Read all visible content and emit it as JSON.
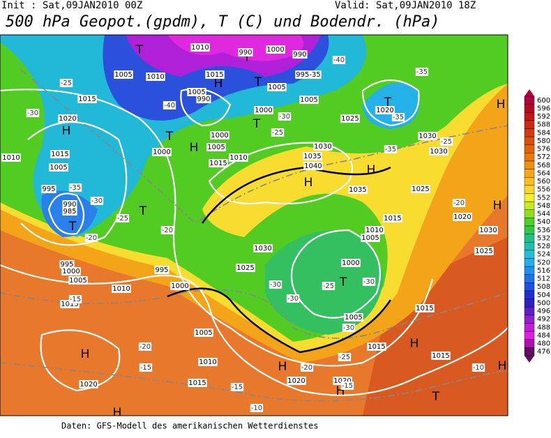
{
  "header": {
    "init": "Init : Sat,09JAN2010 00Z",
    "valid": "Valid: Sat,09JAN2010 18Z",
    "title": "500 hPa Geopot.(gpdm), T (C) und Bodendr. (hPa)"
  },
  "footer": {
    "source": "Daten: GFS-Modell des amerikanischen Wetterdienstes"
  },
  "colorbar": {
    "levels": [
      "600",
      "596",
      "592",
      "588",
      "584",
      "580",
      "576",
      "572",
      "568",
      "564",
      "560",
      "556",
      "552",
      "548",
      "544",
      "540",
      "536",
      "532",
      "528",
      "524",
      "520",
      "516",
      "512",
      "508",
      "504",
      "500",
      "496",
      "492",
      "488",
      "484",
      "480",
      "476"
    ],
    "colors": [
      "#b00040",
      "#b40a20",
      "#c01818",
      "#c82a14",
      "#d03c10",
      "#d8500c",
      "#e06408",
      "#e87a08",
      "#f09010",
      "#f4a818",
      "#f8c020",
      "#f8d830",
      "#f0f030",
      "#c8e828",
      "#90dc20",
      "#50d020",
      "#30c848",
      "#20c080",
      "#20c0b0",
      "#20c0d8",
      "#20b0f0",
      "#2090f0",
      "#2070e8",
      "#2050e0",
      "#2030d0",
      "#3020c0",
      "#6020c8",
      "#9020d0",
      "#c020d8",
      "#e020e0",
      "#b010b0",
      "#601060"
    ]
  },
  "map": {
    "labels": [
      "H",
      "T",
      "H",
      "T",
      "T",
      "H",
      "T",
      "H",
      "T",
      "T",
      "T",
      "H",
      "H",
      "T",
      "H",
      "H",
      "H",
      "T",
      "H",
      "H",
      "H",
      "T",
      "H",
      "1010",
      "990",
      "1000",
      "990",
      "995-35",
      "1010",
      "1015",
      "1005",
      "1005",
      "990",
      "1005",
      "1005",
      "1000",
      "1015",
      "1020",
      "1025",
      "1020",
      "1030",
      "1030",
      "1000",
      "1000",
      "1005",
      "1010",
      "1015",
      "1030",
      "1035",
      "1040",
      "1035",
      "1025",
      "1020",
      "1030",
      "1025",
      "1015",
      "1010",
      "1005",
      "1000",
      "1030",
      "1025",
      "1000",
      "995",
      "1010",
      "1000",
      "1005",
      "995",
      "1015",
      "1005",
      "1010",
      "1015",
      "1020",
      "1015",
      "1015",
      "1015",
      "1020",
      "1020",
      "1005",
      "1010",
      "1005",
      "1015",
      "995",
      "990",
      "985",
      "-25",
      "-30",
      "-35",
      "-30",
      "-25",
      "-20",
      "-20",
      "-40",
      "-40",
      "-35",
      "-35",
      "-35",
      "-30",
      "-25",
      "-25",
      "-20",
      "-30",
      "-30",
      "-25",
      "-30",
      "-30",
      "-25",
      "-20",
      "-15",
      "-20",
      "-15",
      "-15",
      "-10",
      "-10",
      "-15"
    ]
  }
}
